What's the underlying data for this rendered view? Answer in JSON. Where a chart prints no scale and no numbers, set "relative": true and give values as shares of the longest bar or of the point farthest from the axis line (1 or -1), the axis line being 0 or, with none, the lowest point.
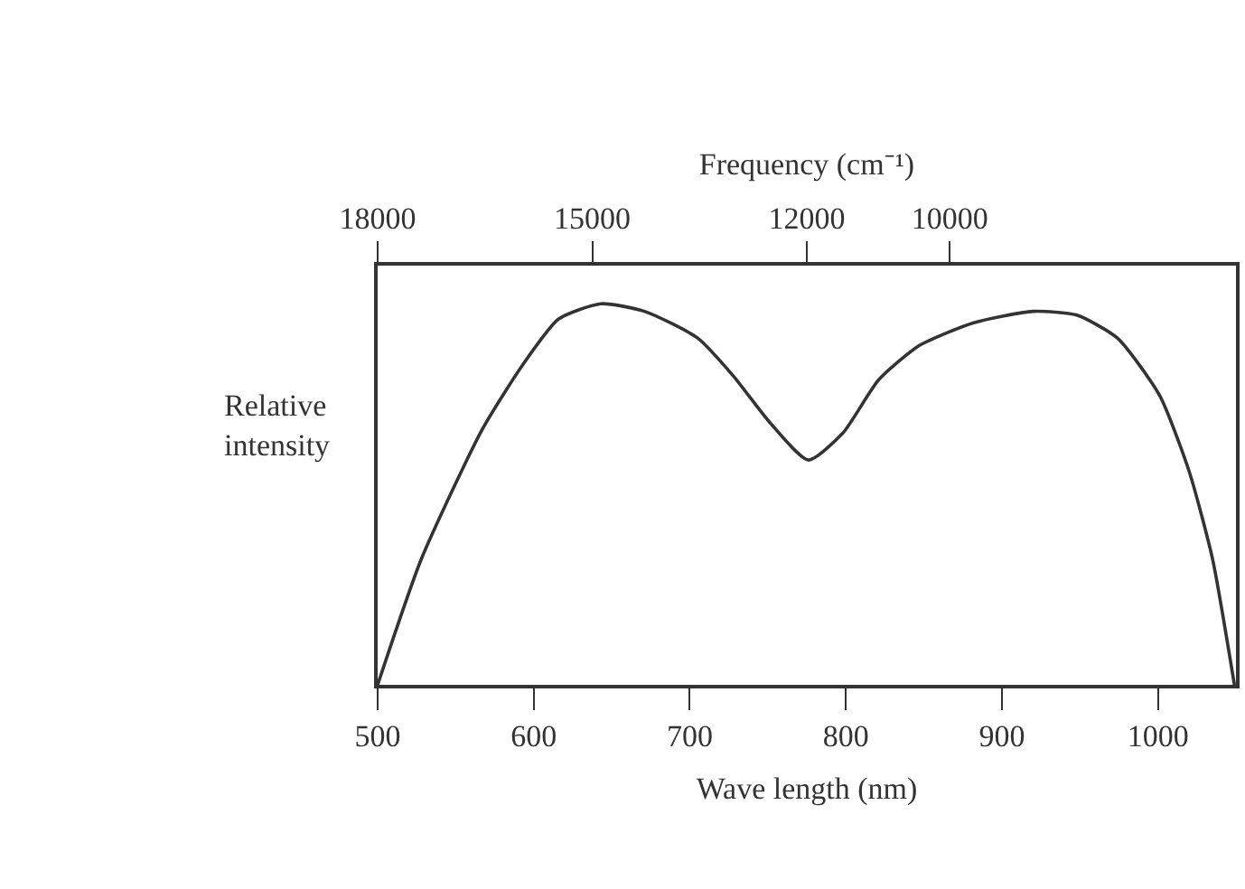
{
  "chart_data": {
    "type": "line",
    "relative": true,
    "xlabel": "Wave length (nm)",
    "ylabel": "Relative intensity",
    "x2label": "Frequency (cm⁻¹)",
    "xlim": [
      500,
      1050
    ],
    "xticks": [
      500,
      600,
      700,
      800,
      900,
      1000
    ],
    "x2lim": [
      18000,
      6000
    ],
    "x2ticks": [
      18000,
      15000,
      12000,
      10000
    ],
    "tick_labels": "x",
    "marker": "none",
    "line_style": "solid",
    "series": [
      {
        "color": "#333333",
        "x": [
          500,
          528,
          567,
          593,
          616,
          643,
          671,
          705,
          728,
          751,
          776,
          798,
          821,
          847,
          882,
          920,
          948,
          974,
          1001,
          1020,
          1035,
          1049
        ],
        "values": [
          0,
          0.33,
          0.67,
          0.84,
          0.96,
          1.0,
          0.98,
          0.91,
          0.81,
          0.69,
          0.59,
          0.66,
          0.8,
          0.89,
          0.95,
          0.98,
          0.97,
          0.91,
          0.76,
          0.56,
          0.33,
          0
        ]
      }
    ]
  }
}
